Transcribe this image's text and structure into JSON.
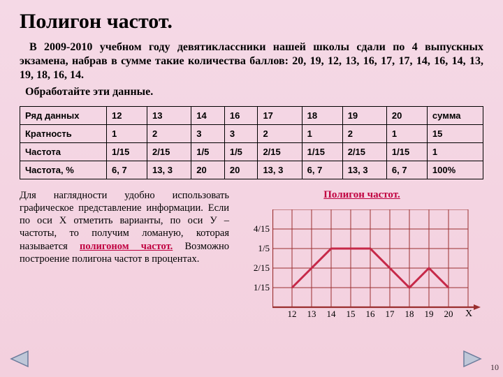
{
  "title": "Полигон частот.",
  "intro_part1": "В 2009-2010 учебном году девятиклассники нашей школы сдали по 4 выпускных экзамена, набрав в сумме такие количества баллов: 20, 19, 12, 13, 16, 17, 17, 14, 16, 14, 13, 19, 18, 16, 14.",
  "intro_part2": "Обработайте эти данные.",
  "table": {
    "rows": [
      {
        "h": "Ряд данных",
        "c": [
          "12",
          "13",
          "14",
          "16",
          "17",
          "18",
          "19",
          "20",
          "сумма"
        ]
      },
      {
        "h": "Кратность",
        "c": [
          "1",
          "2",
          "3",
          "3",
          "2",
          "1",
          "2",
          "1",
          "15"
        ]
      },
      {
        "h": "Частота",
        "c": [
          "1/15",
          "2/15",
          "1/5",
          "1/5",
          "2/15",
          "1/15",
          "2/15",
          "1/15",
          "1"
        ]
      },
      {
        "h": "Частота, %",
        "c": [
          "6, 7",
          "13, 3",
          "20",
          "20",
          "13, 3",
          "6, 7",
          "13, 3",
          "6, 7",
          "100%"
        ]
      }
    ]
  },
  "left_text_before": "Для наглядности удобно использовать графическое представление информации.\nЕсли по оси Х отметить варианты, по оси У – частоты, то получим ломаную, которая называется ",
  "left_highlight": "полигоном частот.",
  "left_text_after": " Возможно построение полигона частот в процентах.",
  "chart": {
    "title": "Полигон частот.",
    "y_ticks": [
      "4/15",
      "1/5",
      "2/15",
      "1/15"
    ],
    "x_ticks": [
      "12",
      "13",
      "14",
      "15",
      "16",
      "17",
      "18",
      "19",
      "20"
    ],
    "x_name": "Х",
    "grid_color": "#9a2f2f",
    "line_color": "#c62848",
    "background": "transparent",
    "cell": 28,
    "rows": 5,
    "cols": 10,
    "points_xi": [
      0,
      1,
      2,
      4,
      5,
      6,
      7,
      8
    ],
    "points_yi": [
      1,
      2,
      3,
      3,
      2,
      1,
      2,
      1
    ]
  },
  "page_number": "10"
}
